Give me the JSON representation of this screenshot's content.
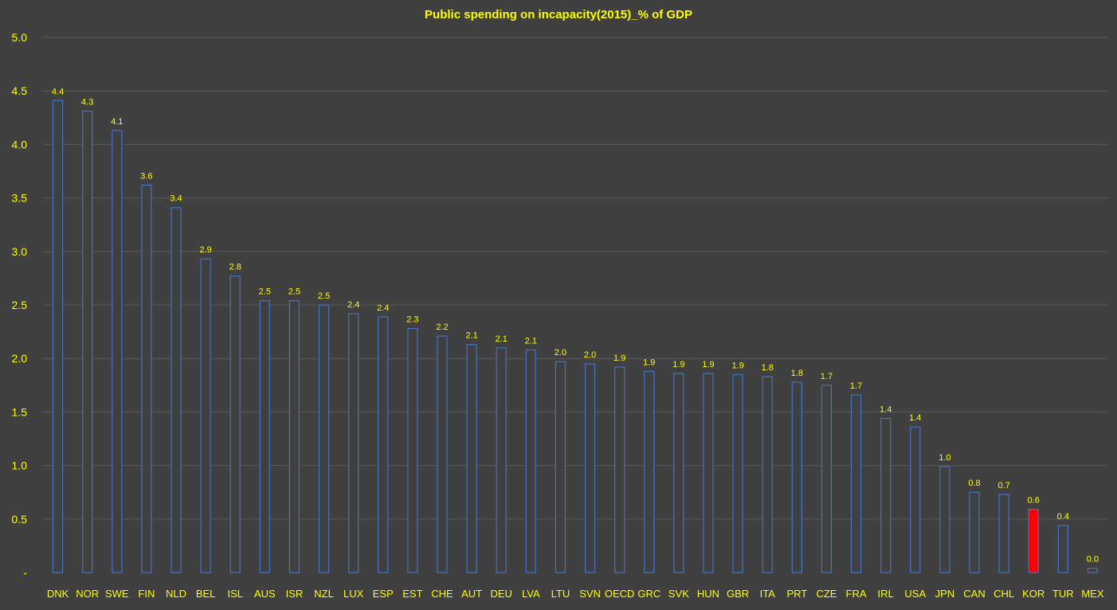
{
  "chart_data": {
    "type": "bar",
    "title": "Public spending on incapacity(2015)_% of GDP",
    "xlabel": "",
    "ylabel": "",
    "ylim": [
      0,
      5
    ],
    "yticks": [
      "-",
      "0.5",
      "1.0",
      "1.5",
      "2.0",
      "2.5",
      "3.0",
      "3.5",
      "4.0",
      "4.5",
      "5.0"
    ],
    "grid": true,
    "categories": [
      "DNK",
      "NOR",
      "SWE",
      "FIN",
      "NLD",
      "BEL",
      "ISL",
      "AUS",
      "ISR",
      "NZL",
      "LUX",
      "ESP",
      "EST",
      "CHE",
      "AUT",
      "DEU",
      "LVA",
      "LTU",
      "SVN",
      "OECD",
      "GRC",
      "SVK",
      "HUN",
      "GBR",
      "ITA",
      "PRT",
      "CZE",
      "FRA",
      "IRL",
      "USA",
      "JPN",
      "CAN",
      "CHL",
      "KOR",
      "TUR",
      "MEX"
    ],
    "values": [
      4.41,
      4.31,
      4.13,
      3.62,
      3.41,
      2.93,
      2.77,
      2.54,
      2.54,
      2.5,
      2.42,
      2.39,
      2.28,
      2.21,
      2.13,
      2.1,
      2.08,
      1.97,
      1.95,
      1.92,
      1.88,
      1.86,
      1.86,
      1.85,
      1.83,
      1.78,
      1.75,
      1.66,
      1.44,
      1.36,
      0.99,
      0.75,
      0.73,
      0.59,
      0.44,
      0.04
    ],
    "data_labels": [
      "4.4",
      "4.3",
      "4.1",
      "3.6",
      "3.4",
      "2.9",
      "2.8",
      "2.5",
      "2.5",
      "2.5",
      "2.4",
      "2.4",
      "2.3",
      "2.2",
      "2.1",
      "2.1",
      "2.1",
      "2.0",
      "2.0",
      "1.9",
      "1.9",
      "1.9",
      "1.9",
      "1.9",
      "1.8",
      "1.8",
      "1.7",
      "1.7",
      "1.4",
      "1.4",
      "1.0",
      "0.8",
      "0.7",
      "0.6",
      "0.4",
      "0.0"
    ],
    "highlight": "KOR",
    "colors": {
      "background": "#404040",
      "bar_fill": "#404040",
      "bar_stroke": "#4472c4",
      "highlight_fill": "#ff0000",
      "text": "#ffff00",
      "grid": "#595959"
    }
  }
}
